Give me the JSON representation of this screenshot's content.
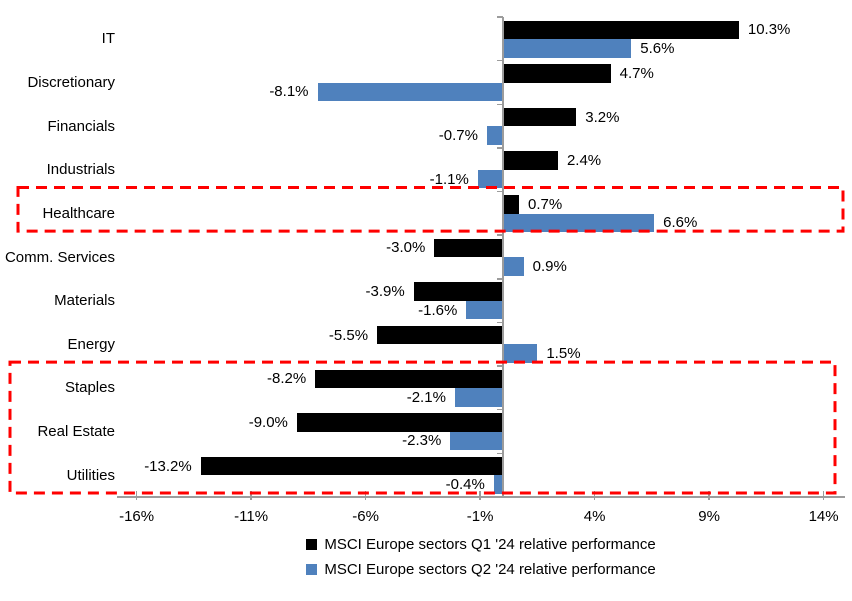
{
  "chart_data": {
    "type": "bar",
    "orientation": "horizontal",
    "title": "",
    "xlabel": "",
    "ylabel": "",
    "xlim": [
      -16.9,
      14.9
    ],
    "grid": false,
    "legend_position": "bottom-center",
    "axis_color": "#9c9c9c",
    "categories": [
      "IT",
      "Discretionary",
      "Financials",
      "Industrials",
      "Healthcare",
      "Comm. Services",
      "Materials",
      "Energy",
      "Staples",
      "Real Estate",
      "Utilities"
    ],
    "series": [
      {
        "name": "MSCI Europe sectors Q1 '24 relative performance",
        "color": "#000000",
        "values": [
          10.3,
          4.7,
          3.2,
          2.4,
          0.7,
          -3.0,
          -3.9,
          -5.5,
          -8.2,
          -9.0,
          -13.2
        ],
        "labels": [
          "10.3%",
          "4.7%",
          "3.2%",
          "2.4%",
          "0.7%",
          "-3.0%",
          "-3.9%",
          "-5.5%",
          "-8.2%",
          "-9.0%",
          "-13.2%"
        ]
      },
      {
        "name": "MSCI Europe sectors Q2 '24 relative performance",
        "color": "#4F81BD",
        "values": [
          5.6,
          -8.1,
          -0.7,
          -1.1,
          6.6,
          0.9,
          -1.6,
          1.5,
          -2.1,
          -2.3,
          -0.4
        ],
        "labels": [
          "5.6%",
          "-8.1%",
          "-0.7%",
          "-1.1%",
          "6.6%",
          "0.9%",
          "-1.6%",
          "1.5%",
          "-2.1%",
          "-2.3%",
          "-0.4%"
        ]
      }
    ],
    "x_ticks": [
      {
        "value": -16,
        "label": "-16%"
      },
      {
        "value": -11,
        "label": "-11%"
      },
      {
        "value": -6,
        "label": "-6%"
      },
      {
        "value": -1,
        "label": "-1%"
      },
      {
        "value": 4,
        "label": "4%"
      },
      {
        "value": 9,
        "label": "9%"
      },
      {
        "value": 14,
        "label": "14%"
      }
    ],
    "highlight_boxes": [
      {
        "name": "healthcare-highlight",
        "start_category": "Healthcare",
        "end_category": "Healthcare",
        "start_row": 4,
        "end_row": 4,
        "color": "#FF0000"
      },
      {
        "name": "defensives-highlight",
        "start_category": "Staples",
        "end_category": "Utilities",
        "start_row": 8,
        "end_row": 10,
        "color": "#FF0000"
      }
    ]
  }
}
